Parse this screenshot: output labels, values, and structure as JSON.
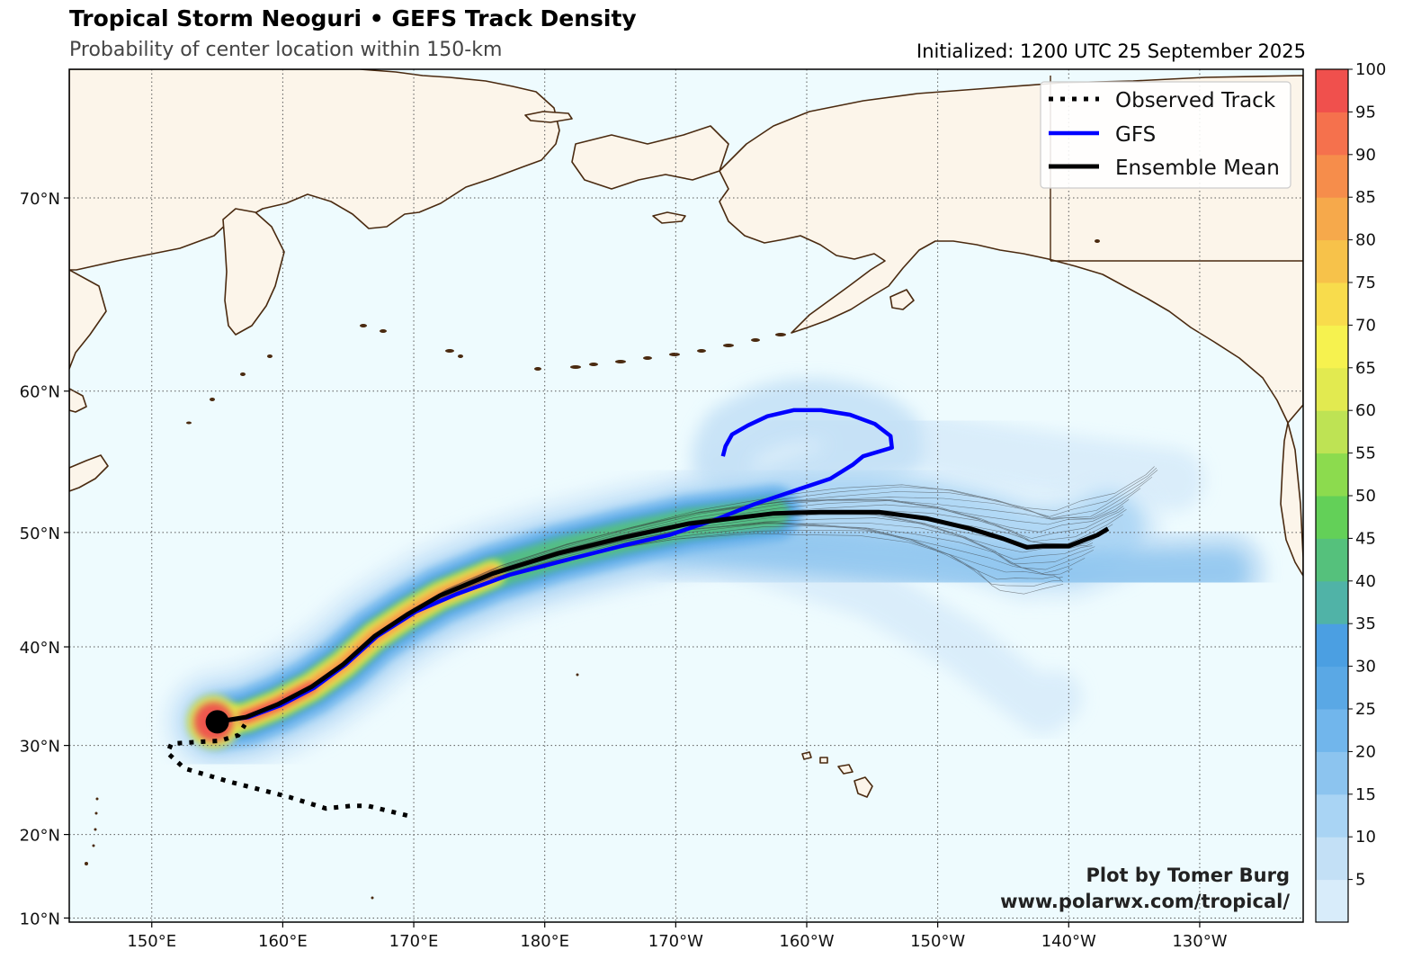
{
  "title": "Tropical Storm Neoguri • GEFS Track Density",
  "subtitle": "Probability of center location within 150-km",
  "initialized": "Initialized: 1200 UTC 25 September 2025",
  "credit": {
    "line1": "Plot by Tomer Burg",
    "line2": "www.polarwx.com/tropical/"
  },
  "legend": [
    {
      "label": "Observed Track",
      "style": "dotted",
      "color": "#000000"
    },
    {
      "label": "GFS",
      "style": "solid",
      "color": "#0000ff"
    },
    {
      "label": "Ensemble Mean",
      "style": "solid",
      "color": "#000000"
    }
  ],
  "map": {
    "lon_range": [
      143.7,
      237.9
    ],
    "lat_range": [
      9.5,
      74.8
    ],
    "lon_ticks": [
      {
        "lon": 150,
        "label": "150°E"
      },
      {
        "lon": 160,
        "label": "160°E"
      },
      {
        "lon": 170,
        "label": "170°E"
      },
      {
        "lon": 180,
        "label": "180°E"
      },
      {
        "lon": 190,
        "label": "170°W"
      },
      {
        "lon": 200,
        "label": "160°W"
      },
      {
        "lon": 210,
        "label": "150°W"
      },
      {
        "lon": 220,
        "label": "140°W"
      },
      {
        "lon": 230,
        "label": "130°W"
      }
    ],
    "lat_ticks": [
      {
        "lat": 10,
        "label": "10°N"
      },
      {
        "lat": 20,
        "label": "20°N"
      },
      {
        "lat": 30,
        "label": "30°N"
      },
      {
        "lat": 40,
        "label": "40°N"
      },
      {
        "lat": 50,
        "label": "50°N"
      },
      {
        "lat": 60,
        "label": "60°N"
      },
      {
        "lat": 70,
        "label": "70°N"
      }
    ],
    "ocean_color": "#eefbfe",
    "land_color": "#fcf5ea",
    "coast_color": "#4a2a10"
  },
  "colorbar": {
    "levels": [
      5,
      10,
      15,
      20,
      25,
      30,
      35,
      40,
      45,
      50,
      55,
      60,
      65,
      70,
      75,
      80,
      85,
      90,
      95,
      100
    ],
    "colors": [
      "#d8ecfa",
      "#c3e0f6",
      "#a9d4f4",
      "#8cc4ef",
      "#71b6ec",
      "#5aa8e5",
      "#4b9fe2",
      "#50b3a7",
      "#55c17c",
      "#63d058",
      "#8cdb4e",
      "#bee354",
      "#e2ea50",
      "#f6f24f",
      "#f8dc4c",
      "#f7c24a",
      "#f6a94b",
      "#f68d4b",
      "#f5714d",
      "#f0504d"
    ]
  },
  "tracks": {
    "observed": [
      [
        169.5,
        22.2
      ],
      [
        166.5,
        23.3
      ],
      [
        165.2,
        23.3
      ],
      [
        163.3,
        23.0
      ],
      [
        160.5,
        24.3
      ],
      [
        156.0,
        26.0
      ],
      [
        152.5,
        27.5
      ],
      [
        151.2,
        29.2
      ],
      [
        151.5,
        30.2
      ],
      [
        153.8,
        30.4
      ],
      [
        155.2,
        30.5
      ],
      [
        156.6,
        31.1
      ],
      [
        157.1,
        32.2
      ]
    ],
    "ensemble_mean": [
      [
        155.0,
        32.5
      ],
      [
        157.2,
        33.0
      ],
      [
        159.6,
        34.3
      ],
      [
        162.2,
        36.1
      ],
      [
        164.6,
        38.3
      ],
      [
        167.0,
        41.0
      ],
      [
        169.5,
        43.0
      ],
      [
        172.0,
        44.7
      ],
      [
        176.0,
        46.6
      ],
      [
        181.0,
        48.3
      ],
      [
        186.0,
        49.6
      ],
      [
        191.0,
        50.7
      ],
      [
        197.5,
        51.5
      ],
      [
        201.0,
        51.6
      ],
      [
        205.5,
        51.6
      ],
      [
        209.2,
        51.1
      ],
      [
        212.5,
        50.3
      ],
      [
        215.0,
        49.5
      ],
      [
        216.8,
        48.8
      ],
      [
        218.0,
        48.9
      ],
      [
        220.0,
        48.9
      ],
      [
        221.2,
        49.4
      ],
      [
        222.2,
        49.8
      ],
      [
        223.0,
        50.3
      ]
    ],
    "gfs": [
      [
        155.0,
        32.5
      ],
      [
        157.4,
        33.0
      ],
      [
        159.8,
        34.2
      ],
      [
        162.4,
        36.0
      ],
      [
        164.8,
        38.3
      ],
      [
        167.2,
        41.0
      ],
      [
        170.2,
        43.3
      ],
      [
        173.2,
        44.8
      ],
      [
        177.3,
        46.5
      ],
      [
        181.8,
        47.8
      ],
      [
        186.2,
        49.0
      ],
      [
        189.5,
        49.8
      ],
      [
        193.0,
        51.0
      ],
      [
        196.0,
        52.2
      ],
      [
        199.0,
        53.2
      ],
      [
        201.8,
        54.1
      ],
      [
        203.5,
        55.1
      ],
      [
        204.3,
        55.7
      ],
      [
        206.5,
        56.3
      ],
      [
        206.4,
        57.1
      ],
      [
        205.2,
        57.9
      ],
      [
        203.3,
        58.5
      ],
      [
        201.1,
        58.8
      ],
      [
        199.0,
        58.8
      ],
      [
        197.0,
        58.4
      ],
      [
        195.5,
        57.8
      ],
      [
        194.3,
        57.2
      ],
      [
        193.8,
        56.4
      ],
      [
        193.6,
        55.7
      ]
    ]
  }
}
